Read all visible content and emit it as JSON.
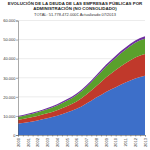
{
  "chart_data": {
    "type": "area",
    "title": "EVOLUCIÓN DE LA DEUDA DE LAS EMPRESAS PÚBLICAS POR ADMINISTRACIÓN (NO CONSOLIDADO)",
    "subtitle": "TOTAL: 51.778.472.000€ Actualizado 07/2013",
    "categories": [
      "2000",
      null,
      "2001",
      null,
      "2002",
      null,
      "2003",
      null,
      "2004",
      null,
      "2005",
      null,
      "2006",
      null,
      "2007",
      null,
      "2008",
      null,
      "2009",
      null,
      "2010",
      null,
      "2011",
      null,
      "2012",
      null,
      "2013"
    ],
    "series": [
      {
        "color": "#3d6fc9",
        "values": [
          6000,
          6300,
          6700,
          7100,
          7600,
          8200,
          8800,
          9400,
          10100,
          10900,
          11800,
          12700,
          13800,
          15000,
          16500,
          18000,
          19600,
          21000,
          22500,
          23800,
          25000,
          26300,
          27500,
          28600,
          29600,
          30400,
          31000
        ]
      },
      {
        "color": "#c0392b",
        "values": [
          2000,
          2100,
          2200,
          2300,
          2400,
          2500,
          2600,
          2700,
          2900,
          3100,
          3300,
          3500,
          3800,
          4200,
          4700,
          5300,
          6000,
          6800,
          7600,
          8300,
          9000,
          9600,
          10100,
          10600,
          11000,
          11300,
          11500
        ]
      },
      {
        "color": "#5aa02c",
        "values": [
          1500,
          1600,
          1700,
          1800,
          1900,
          2000,
          2100,
          2300,
          2500,
          2700,
          2900,
          3100,
          3400,
          3700,
          4000,
          4400,
          4800,
          5200,
          5600,
          6000,
          6400,
          6800,
          7100,
          7400,
          7700,
          7900,
          8000
        ]
      },
      {
        "color": "#7030a0",
        "values": [
          500,
          500,
          520,
          540,
          560,
          580,
          600,
          620,
          650,
          680,
          710,
          740,
          780,
          820,
          860,
          900,
          950,
          1000,
          1050,
          1100,
          1150,
          1180,
          1210,
          1230,
          1250,
          1265,
          1278
        ]
      }
    ],
    "stacked": true,
    "ylim": [
      0,
      60000
    ],
    "yticks": [
      0,
      {
        "value": 10000,
        "label": "10.000"
      },
      {
        "value": 20000,
        "label": "20.000"
      },
      {
        "value": 30000,
        "label": "30.000"
      },
      {
        "value": 40000,
        "label": "40.000"
      },
      {
        "value": 50000,
        "label": "50.000"
      },
      {
        "value": 60000,
        "label": "60.000"
      }
    ],
    "grid": true
  }
}
